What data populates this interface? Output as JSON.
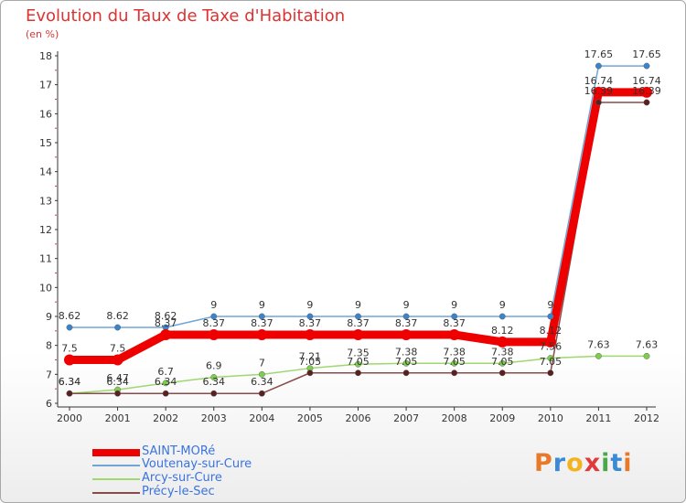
{
  "title": "Evolution du Taux de Taxe d'Habitation",
  "unit": "(en %)",
  "logo": "Proxiti",
  "chart_data": {
    "type": "line",
    "x": [
      "2000",
      "2001",
      "2002",
      "2003",
      "2004",
      "2005",
      "2006",
      "2007",
      "2008",
      "2009",
      "2010",
      "2011",
      "2012"
    ],
    "ylim": [
      6,
      18
    ],
    "yticks": [
      6,
      7,
      8,
      9,
      10,
      11,
      12,
      13,
      14,
      15,
      16,
      17,
      18
    ],
    "grid": false,
    "legend_position": "bottom-left",
    "series": [
      {
        "name": "SAINT-MORé",
        "color": "#ee0000",
        "values": [
          7.5,
          7.5,
          8.37,
          8.37,
          8.37,
          8.37,
          8.37,
          8.37,
          8.37,
          8.12,
          8.12,
          16.74,
          16.74
        ],
        "labels": [
          "7.5",
          "7.5",
          "8.37",
          "8.37",
          "8.37",
          "8.37",
          "8.37",
          "8.37",
          "8.37",
          "8.12",
          "8.12",
          "16.74",
          "16.74"
        ]
      },
      {
        "name": "Voutenay-sur-Cure",
        "color": "#6fa6d6",
        "values": [
          8.62,
          8.62,
          8.62,
          9,
          9,
          9,
          9,
          9,
          9,
          9,
          9,
          17.65,
          17.65
        ],
        "labels": [
          "8.62",
          "8.62",
          "8.62",
          "9",
          "9",
          "9",
          "9",
          "9",
          "9",
          "9",
          "9",
          "17.65",
          "17.65"
        ]
      },
      {
        "name": "Arcy-sur-Cure",
        "color": "#9ed86e",
        "values": [
          6.34,
          6.47,
          6.7,
          6.9,
          7,
          7.21,
          7.35,
          7.38,
          7.38,
          7.38,
          7.56,
          7.63,
          7.63
        ],
        "labels": [
          "6.34",
          "6.47",
          "6.7",
          "6.9",
          "7",
          "7.21",
          "7.35",
          "7.38",
          "7.38",
          "7.38",
          "7.56",
          "7.63",
          "7.63"
        ]
      },
      {
        "name": "Précy-le-Sec",
        "color": "#8a4a4a",
        "values": [
          6.34,
          6.34,
          6.34,
          6.34,
          6.34,
          7.05,
          7.05,
          7.05,
          7.05,
          7.05,
          7.05,
          16.39,
          16.39
        ],
        "labels": [
          "6.34",
          "6.34",
          "6.34",
          "6.34",
          "6.34",
          "7.05",
          "7.05",
          "7.05",
          "7.05",
          "7.05",
          "7.05",
          "16.39",
          "16.39"
        ]
      }
    ]
  }
}
